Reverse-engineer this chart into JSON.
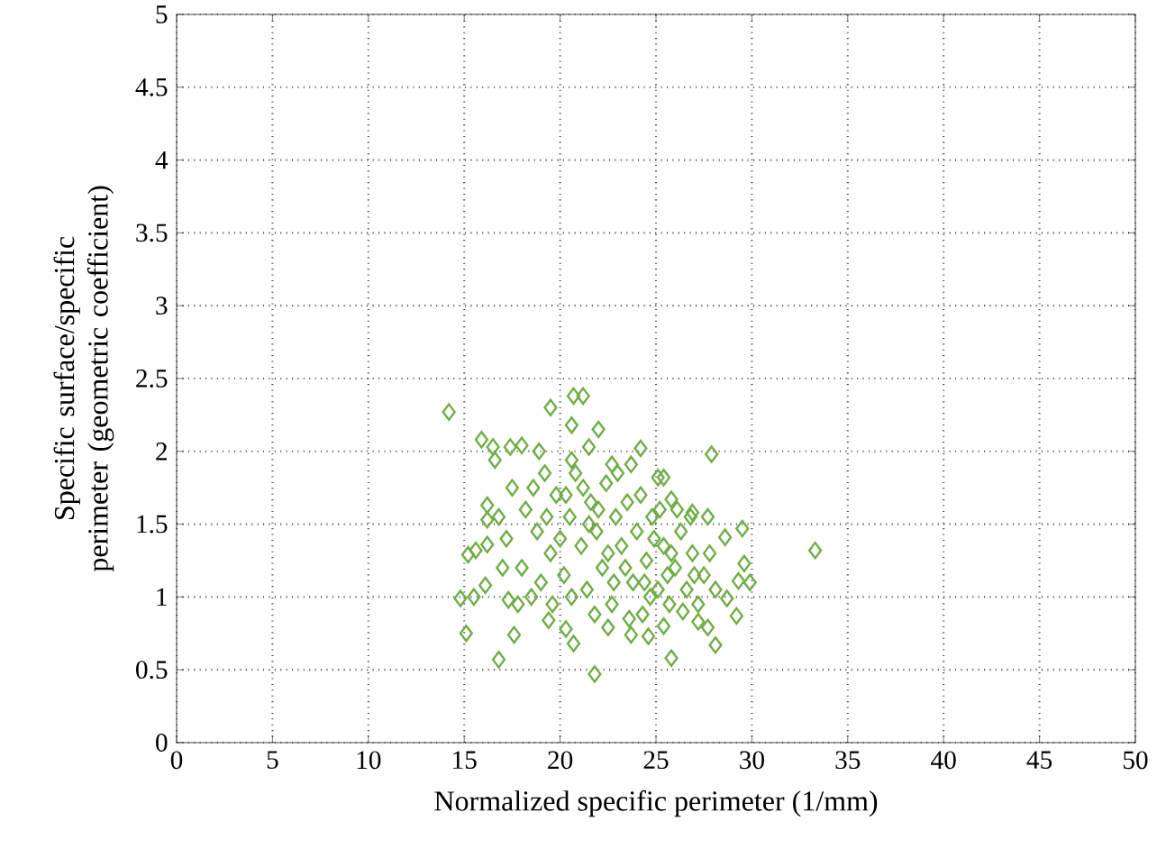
{
  "chart_data": {
    "type": "scatter",
    "xlabel": "Normalized specific perimeter (1/mm)",
    "ylabel": "Specific surface/specific perimeter (geometric coefficient)",
    "xlim": [
      0,
      50
    ],
    "ylim": [
      0,
      5
    ],
    "xticks": [
      0,
      5,
      10,
      15,
      20,
      25,
      30,
      35,
      40,
      45,
      50
    ],
    "yticks": [
      0,
      0.5,
      1,
      1.5,
      2,
      2.5,
      3,
      3.5,
      4,
      4.5,
      5
    ],
    "grid": true,
    "marker": "diamond",
    "series": [
      {
        "color": "#70ad47",
        "x": [
          14.2,
          19.5,
          20.7,
          21.2,
          20.6,
          22.0,
          24.2,
          14.8,
          15.5,
          16.1,
          15.2,
          15.6,
          16.2,
          15.9,
          16.5,
          16.6,
          17.4,
          18.0,
          18.9,
          16.2,
          16.2,
          17.3,
          19.4,
          20.3,
          20.7,
          22.5,
          23.7,
          24.6,
          25.4,
          27.2,
          27.7,
          28.7,
          29.3,
          29.9,
          29.6,
          28.6,
          27.7,
          26.9,
          25.8,
          25.4,
          25.1,
          23.7,
          22.7,
          21.5,
          20.6,
          27.9,
          33.3,
          29.5,
          29.2,
          28.1,
          25.8,
          21.8,
          16.8,
          15.1,
          17.6,
          17.5,
          18.2,
          18.8,
          19.2,
          19.5,
          19.8,
          20.2,
          20.5,
          20.8,
          21.1,
          21.4,
          21.6,
          21.9,
          22.2,
          22.4,
          22.7,
          22.9,
          23.2,
          23.5,
          23.8,
          24.0,
          24.3,
          24.5,
          24.8,
          25.1,
          25.4,
          25.7,
          26.0,
          26.3,
          26.6,
          26.9,
          27.2,
          27.5,
          27.8,
          28.1,
          18.0,
          18.5,
          19.0,
          17.2,
          17.8,
          19.6,
          20.0,
          20.6,
          21.2,
          21.8,
          22.5,
          23.0,
          23.6,
          24.2,
          24.7,
          25.2,
          25.8,
          26.4,
          26.8,
          19.3,
          20.3,
          22.0,
          23.4,
          24.9,
          26.1,
          18.6,
          17.0,
          16.8,
          21.5,
          22.8,
          24.4,
          25.6,
          27.0
        ],
        "values": [
          2.27,
          2.3,
          2.38,
          2.38,
          2.18,
          2.15,
          2.02,
          0.99,
          1.0,
          1.08,
          1.29,
          1.32,
          1.36,
          2.08,
          2.03,
          1.94,
          2.03,
          2.04,
          2.0,
          1.63,
          1.53,
          0.98,
          0.84,
          0.78,
          0.68,
          0.79,
          0.74,
          0.73,
          0.8,
          0.83,
          0.79,
          0.99,
          1.11,
          1.1,
          1.23,
          1.41,
          1.55,
          1.58,
          1.67,
          1.82,
          1.82,
          1.91,
          1.91,
          2.03,
          1.94,
          1.98,
          1.32,
          1.47,
          0.87,
          0.67,
          0.58,
          0.47,
          0.57,
          0.75,
          0.74,
          1.75,
          1.6,
          1.45,
          1.85,
          1.3,
          1.7,
          1.15,
          1.55,
          1.85,
          1.35,
          1.05,
          1.65,
          1.45,
          1.2,
          1.78,
          0.95,
          1.55,
          1.35,
          1.65,
          1.1,
          1.45,
          0.88,
          1.25,
          1.55,
          1.05,
          1.35,
          0.95,
          1.2,
          1.45,
          1.05,
          1.3,
          0.95,
          1.15,
          1.3,
          1.05,
          1.2,
          1.0,
          1.1,
          1.4,
          0.95,
          0.95,
          1.4,
          1.0,
          1.75,
          0.88,
          1.3,
          1.85,
          0.85,
          1.7,
          1.0,
          1.6,
          1.3,
          0.9,
          1.55,
          1.55,
          1.7,
          1.6,
          1.2,
          1.4,
          1.6,
          1.75,
          1.2,
          1.55,
          1.5,
          1.1,
          1.1,
          1.15,
          1.15
        ]
      }
    ]
  }
}
